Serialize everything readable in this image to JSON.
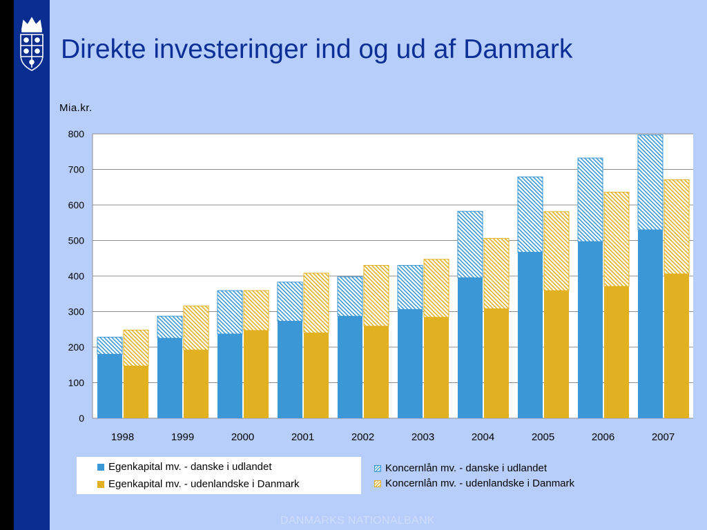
{
  "slide": {
    "title": "Direkte investeringer ind og ud af Danmark",
    "footer": "DANMARKS NATIONALBANK",
    "colors": {
      "background": "#b7cefb",
      "sidebar": "#0a2e8f",
      "title": "#0b2f96",
      "blue": "#3b97d6",
      "gold": "#e2b121"
    },
    "logo_icon": "crown-shield-logo-icon"
  },
  "chart_data": {
    "type": "bar",
    "stacked": true,
    "unit_label": "Mia.kr.",
    "categories": [
      "1998",
      "1999",
      "2000",
      "2001",
      "2002",
      "2003",
      "2004",
      "2005",
      "2006",
      "2007"
    ],
    "ylim": [
      0,
      800
    ],
    "yticks": [
      "0",
      "100",
      "200",
      "300",
      "400",
      "500",
      "600",
      "700",
      "800"
    ],
    "grid": true,
    "legend_position": "bottom",
    "groups": [
      {
        "stack": "danske i udlandet",
        "color": "#3b97d6",
        "segments": [
          {
            "name": "Egenkapital mv. - danske i udlandet",
            "pattern": "solid",
            "values": [
              180,
              225,
              237,
              273,
              287,
              306,
              395,
              467,
              497,
              530
            ]
          },
          {
            "name": "Koncernlån mv. - danske i udlandet",
            "pattern": "hatch",
            "values": [
              48,
              62,
              122,
              110,
              111,
              124,
              187,
              212,
              235,
              267
            ]
          }
        ]
      },
      {
        "stack": "udenlandske i Danmark",
        "color": "#e2b121",
        "segments": [
          {
            "name": "Egenkapital mv. - udenlandske i Danmark",
            "pattern": "solid",
            "values": [
              147,
              192,
              247,
              240,
              259,
              284,
              308,
              359,
              371,
              406
            ]
          },
          {
            "name": "Koncernlån mv. - udenlandske i Danmark",
            "pattern": "hatch",
            "values": [
              101,
              124,
              112,
              168,
              171,
              163,
              198,
              222,
              265,
              265
            ]
          }
        ]
      }
    ]
  }
}
